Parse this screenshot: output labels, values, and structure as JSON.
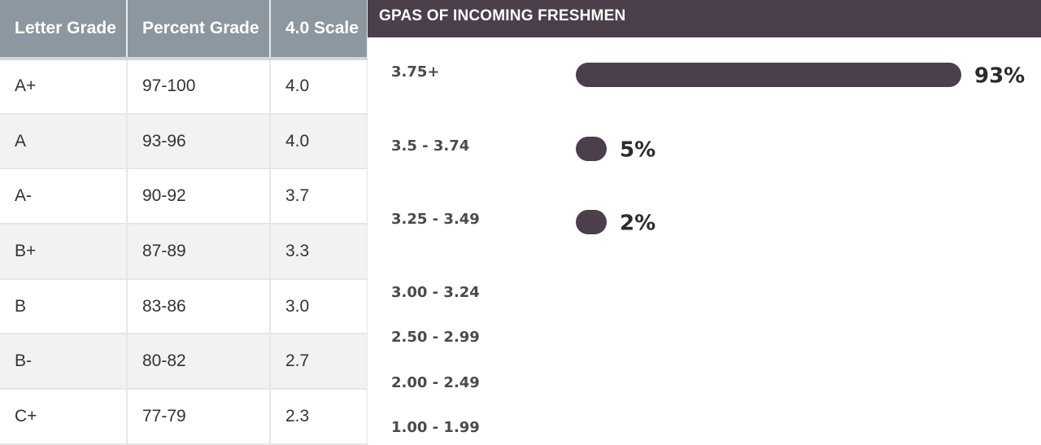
{
  "table": {
    "headers": [
      "Letter Grade",
      "Percent Grade",
      "4.0 Scale"
    ],
    "rows": [
      [
        "A+",
        "97-100",
        "4.0"
      ],
      [
        "A",
        "93-96",
        "4.0"
      ],
      [
        "A-",
        "90-92",
        "3.7"
      ],
      [
        "B+",
        "87-89",
        "3.3"
      ],
      [
        "B",
        "83-86",
        "3.0"
      ],
      [
        "B-",
        "80-82",
        "2.7"
      ],
      [
        "C+",
        "77-79",
        "2.3"
      ]
    ]
  },
  "colors": {
    "bar": "#4b3f4c",
    "header_bg": "#4b3f4c",
    "table_header_bg": "#8c979f"
  },
  "chart_data": {
    "type": "bar",
    "orientation": "horizontal",
    "title": "GPAS OF INCOMING FRESHMEN",
    "categories": [
      "3.75+",
      "3.5 - 3.74",
      "3.25 - 3.49",
      "3.00 - 3.24",
      "2.50 - 2.99",
      "2.00 - 2.49",
      "1.00 - 1.99"
    ],
    "values": [
      93,
      5,
      2,
      null,
      null,
      null,
      null
    ],
    "value_labels": [
      "93%",
      "5%",
      "2%",
      "",
      "",
      "",
      ""
    ],
    "xlim": [
      0,
      93
    ],
    "grid": false,
    "legend": "none"
  }
}
